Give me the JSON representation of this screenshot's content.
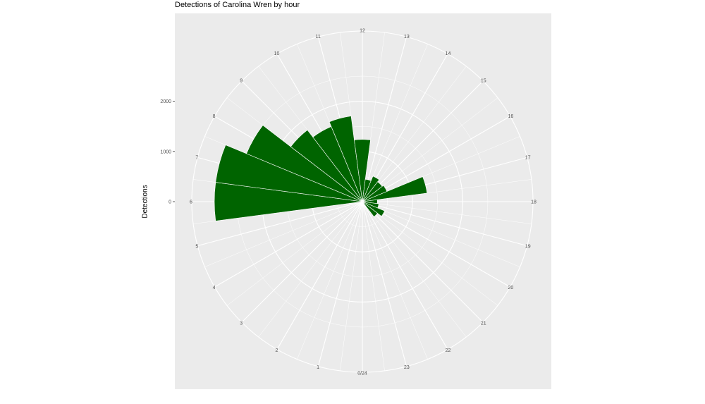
{
  "chart_data": {
    "type": "bar",
    "coord": "polar",
    "title": "Detections of Carolina Wren by hour",
    "xlabel": "",
    "ylabel": "Detections",
    "categories": [
      "0/24",
      "1",
      "2",
      "3",
      "4",
      "5",
      "6",
      "7",
      "8",
      "9",
      "10",
      "11",
      "12",
      "13",
      "14",
      "15",
      "16",
      "17",
      "18",
      "19",
      "20",
      "21",
      "22",
      "23"
    ],
    "values": [
      0,
      0,
      0,
      0,
      0,
      0,
      2950,
      2950,
      2500,
      1800,
      1620,
      1720,
      1240,
      450,
      550,
      500,
      530,
      1300,
      300,
      330,
      480,
      380,
      0,
      0
    ],
    "y_ticks": [
      "0",
      "1000",
      "2000"
    ],
    "ylim": [
      0,
      3400
    ],
    "grid": true,
    "colors": {
      "bar": "#006400",
      "panel": "#EBEBEB",
      "grid": "#FFFFFF"
    }
  }
}
